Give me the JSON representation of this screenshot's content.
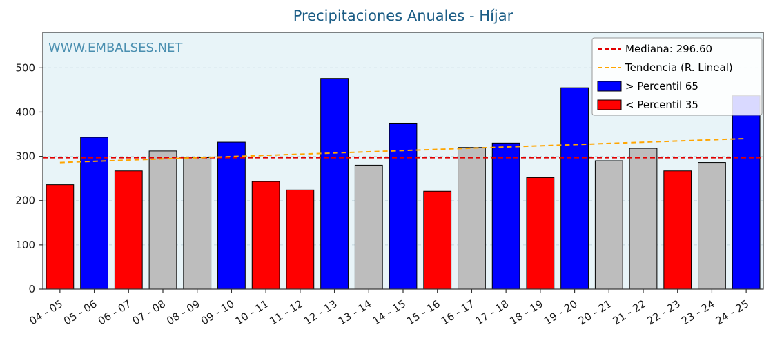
{
  "title": "Precipitaciones Anuales - Híjar",
  "watermark": "WWW.EMBALSES.NET",
  "colors": {
    "title": "#1a5c85",
    "watermark": "#4a8fb0",
    "plot_bg": "#e8f4f8",
    "grid": "#c5d8e0",
    "above": "#0000ff",
    "below": "#ff0000",
    "mid": "#bdbdbd",
    "bar_edge": "#000000",
    "median_line": "#e10000",
    "trend_line": "#ffa500",
    "axis": "#333333"
  },
  "legend": {
    "median_label": "Mediana: 296.60",
    "trend_label": "Tendencia (R. Lineal)",
    "above_label": " > Percentil 65",
    "below_label": " < Percentil 35"
  },
  "chart_data": {
    "type": "bar",
    "title": "Precipitaciones Anuales - Híjar",
    "xlabel": "",
    "ylabel": "",
    "categories": [
      "04 - 05",
      "05 - 06",
      "06 - 07",
      "07 - 08",
      "08 - 09",
      "09 - 10",
      "10 - 11",
      "11 - 12",
      "12 - 13",
      "13 - 14",
      "14 - 15",
      "15 - 16",
      "16 - 17",
      "17 - 18",
      "18 - 19",
      "19 - 20",
      "20 - 21",
      "21 - 22",
      "22 - 23",
      "23 - 24",
      "24 - 25"
    ],
    "values": [
      236,
      343,
      267,
      312,
      297,
      332,
      243,
      224,
      476,
      280,
      375,
      221,
      320,
      330,
      252,
      455,
      290,
      318,
      267,
      286,
      437
    ],
    "classes": [
      "below",
      "above",
      "below",
      "mid",
      "mid",
      "above",
      "below",
      "below",
      "above",
      "mid",
      "above",
      "below",
      "mid",
      "above",
      "below",
      "above",
      "mid",
      "mid",
      "below",
      "mid",
      "above"
    ],
    "median": 296.6,
    "trend": {
      "start": 286,
      "end": 340
    },
    "ylim": [
      0,
      580
    ],
    "yticks": [
      0,
      100,
      200,
      300,
      400,
      500
    ],
    "grid": true,
    "legend_position": "upper right"
  }
}
